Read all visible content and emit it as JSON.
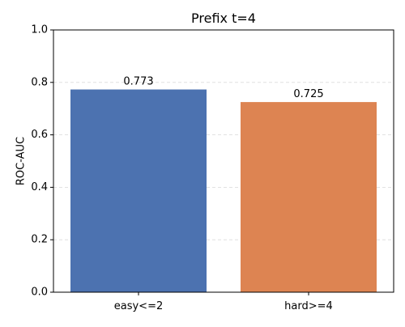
{
  "chart_data": {
    "type": "bar",
    "title": "Prefix t=4",
    "xlabel": "",
    "ylabel": "ROC-AUC",
    "categories": [
      "easy<=2",
      "hard>=4"
    ],
    "values": [
      0.773,
      0.725
    ],
    "value_labels": [
      "0.773",
      "0.725"
    ],
    "colors": [
      "#4c72b0",
      "#dd8452"
    ],
    "ylim": [
      0,
      1
    ],
    "yticks": [
      0,
      0.2,
      0.4,
      0.6,
      0.8,
      1
    ],
    "ytick_labels": [
      "0.0",
      "0.2",
      "0.4",
      "0.6",
      "0.8",
      "1.0"
    ],
    "grid": true,
    "grid_axis": "y",
    "legend": false
  }
}
